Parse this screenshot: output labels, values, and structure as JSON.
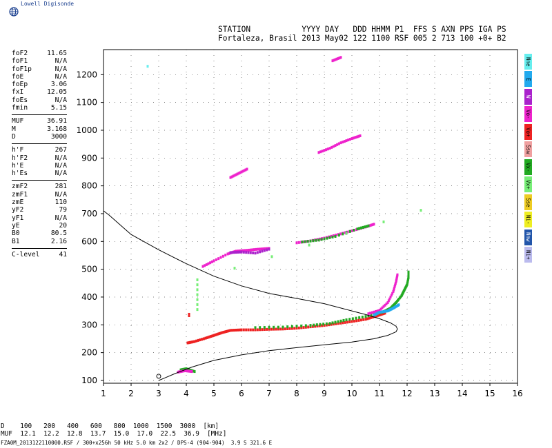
{
  "branding": {
    "logo_text": "Lowell Digisonde"
  },
  "header": {
    "line1": "STATION           YYYY DAY   DDD HHMM P1  FFS S AXN PPS IGA PS",
    "line2": "Fortaleza, Brasil 2013 May02 122 1100 RSF 005 2 713 100 +0+ B2"
  },
  "params_groups": [
    [
      {
        "k": "foF2",
        "v": "11.65"
      },
      {
        "k": "foF1",
        "v": "N/A"
      },
      {
        "k": "foF1p",
        "v": "N/A"
      },
      {
        "k": "foE",
        "v": "N/A"
      },
      {
        "k": "foEp",
        "v": "3.06"
      },
      {
        "k": "fxI",
        "v": "12.05"
      },
      {
        "k": "foEs",
        "v": "N/A"
      },
      {
        "k": "fmin",
        "v": "5.15"
      }
    ],
    [
      {
        "k": "MUF",
        "v": "36.91"
      },
      {
        "k": "M",
        "v": "3.168"
      },
      {
        "k": "D",
        "v": "3000"
      }
    ],
    [
      {
        "k": "h'F",
        "v": "267"
      },
      {
        "k": "h'F2",
        "v": "N/A"
      },
      {
        "k": "h'E",
        "v": "N/A"
      },
      {
        "k": "h'Es",
        "v": "N/A"
      }
    ],
    [
      {
        "k": "zmF2",
        "v": "281"
      },
      {
        "k": "zmF1",
        "v": "N/A"
      },
      {
        "k": "zmE",
        "v": "110"
      },
      {
        "k": "yF2",
        "v": "79"
      },
      {
        "k": "yF1",
        "v": "N/A"
      },
      {
        "k": "yE",
        "v": "20"
      },
      {
        "k": "B0",
        "v": "80.5"
      },
      {
        "k": "B1",
        "v": "2.16"
      }
    ],
    [
      {
        "k": "C-level",
        "v": "41"
      }
    ]
  ],
  "legend": [
    {
      "label": "Nne",
      "color": "#66eeee"
    },
    {
      "label": "E",
      "color": "#22aaee"
    },
    {
      "label": "W",
      "color": "#aa22cc"
    },
    {
      "label": "Vo-",
      "color": "#ee22cc"
    },
    {
      "label": "Vo+",
      "color": "#ee2222"
    },
    {
      "label": "Ssw",
      "color": "#f0a0a0"
    },
    {
      "label": "Vx-",
      "color": "#22aa22"
    },
    {
      "label": "Vx+",
      "color": "#77ee77"
    },
    {
      "label": "Sse",
      "color": "#eecc22"
    },
    {
      "label": "Ni-",
      "color": "#eeee22"
    },
    {
      "label": "Nnw",
      "color": "#2255aa"
    },
    {
      "label": "Ni+",
      "color": "#bbbbee"
    }
  ],
  "footer": {
    "line1": "D    100   200   400   600   800  1000  1500  3000  [km]",
    "line2": "MUF  12.1  12.2  12.8  13.7  15.0  17.0  22.5  36.9  [MHz]",
    "line3": "FZA0M_2013122110000.RSF / 300+x256h 50 kHz 5.0 km 2x2 / DPS-4 (904-904)  3.9 S 321.6 E"
  },
  "chart_data": {
    "type": "scatter",
    "title": "",
    "xlabel": "",
    "ylabel": "",
    "xlim": [
      1,
      16
    ],
    "ylim": [
      90,
      1290
    ],
    "x_ticks": [
      "1",
      "2",
      "3",
      "4",
      "5",
      "6",
      "7",
      "8",
      "9",
      "10",
      "11",
      "12",
      "13",
      "14",
      "15",
      "16"
    ],
    "y_ticks": [
      "100",
      "200",
      "300",
      "400",
      "500",
      "600",
      "700",
      "800",
      "900",
      "1000",
      "1100",
      "1200"
    ],
    "grid": "dotted",
    "profile_curve": {
      "name": "",
      "color": "#000000",
      "points": [
        [
          3.0,
          100
        ],
        [
          3.2,
          108
        ],
        [
          3.6,
          125
        ],
        [
          4.2,
          148
        ],
        [
          5.0,
          172
        ],
        [
          6.0,
          192
        ],
        [
          7.0,
          207
        ],
        [
          8.0,
          218
        ],
        [
          9.0,
          228
        ],
        [
          10.0,
          238
        ],
        [
          10.8,
          250
        ],
        [
          11.3,
          262
        ],
        [
          11.6,
          275
        ],
        [
          11.65,
          285
        ],
        [
          11.6,
          295
        ],
        [
          11.4,
          307
        ],
        [
          11.0,
          322
        ],
        [
          10.5,
          337
        ],
        [
          10.0,
          350
        ],
        [
          9.0,
          376
        ],
        [
          8.0,
          395
        ],
        [
          7.0,
          413
        ],
        [
          6.0,
          440
        ],
        [
          5.0,
          475
        ],
        [
          4.0,
          520
        ],
        [
          3.0,
          570
        ],
        [
          2.0,
          625
        ],
        [
          1.6,
          660
        ],
        [
          1.2,
          695
        ],
        [
          1.0,
          710
        ]
      ]
    },
    "echo_traces": [
      {
        "color": "#ee2222",
        "points": [
          [
            4.05,
            235
          ],
          [
            4.3,
            240
          ],
          [
            4.7,
            252
          ],
          [
            5.0,
            262
          ],
          [
            5.3,
            272
          ],
          [
            5.6,
            280
          ],
          [
            6.0,
            282
          ],
          [
            6.5,
            282
          ],
          [
            7.0,
            284
          ],
          [
            7.5,
            285
          ],
          [
            8.0,
            288
          ],
          [
            8.5,
            293
          ],
          [
            9.0,
            298
          ],
          [
            9.5,
            305
          ],
          [
            10.0,
            312
          ],
          [
            10.5,
            320
          ],
          [
            10.9,
            332
          ],
          [
            11.2,
            342
          ]
        ]
      },
      {
        "color": "#22aa22",
        "points": [
          [
            6.5,
            290
          ],
          [
            7.5,
            292
          ],
          [
            8.5,
            298
          ],
          [
            9.2,
            305
          ],
          [
            9.8,
            318
          ],
          [
            10.5,
            330
          ],
          [
            11.1,
            345
          ],
          [
            11.4,
            360
          ],
          [
            11.6,
            380
          ],
          [
            11.8,
            405
          ],
          [
            11.9,
            425
          ],
          [
            12.0,
            445
          ],
          [
            12.05,
            470
          ],
          [
            12.05,
            490
          ]
        ]
      },
      {
        "color": "#ee22cc",
        "points": [
          [
            10.6,
            340
          ],
          [
            11.0,
            352
          ],
          [
            11.3,
            380
          ],
          [
            11.5,
            420
          ],
          [
            11.6,
            455
          ],
          [
            11.65,
            480
          ]
        ]
      },
      {
        "color": "#22aaee",
        "points": [
          [
            10.8,
            335
          ],
          [
            11.0,
            345
          ],
          [
            11.3,
            350
          ],
          [
            11.5,
            360
          ],
          [
            11.7,
            372
          ]
        ]
      },
      {
        "color": "#ee22cc",
        "points": [
          [
            4.6,
            510
          ],
          [
            5.0,
            530
          ],
          [
            5.5,
            555
          ],
          [
            5.8,
            565
          ],
          [
            6.2,
            568
          ],
          [
            6.6,
            572
          ],
          [
            7.0,
            575
          ]
        ]
      },
      {
        "color": "#aa22cc",
        "points": [
          [
            5.6,
            560
          ],
          [
            6.0,
            562
          ],
          [
            6.5,
            558
          ],
          [
            7.0,
            572
          ]
        ]
      },
      {
        "color": "#ee22cc",
        "points": [
          [
            8.0,
            595
          ],
          [
            8.5,
            602
          ],
          [
            9.0,
            612
          ],
          [
            9.5,
            625
          ],
          [
            10.0,
            638
          ],
          [
            10.5,
            652
          ],
          [
            10.8,
            662
          ]
        ]
      },
      {
        "color": "#22aa22",
        "points": [
          [
            8.2,
            598
          ],
          [
            8.8,
            605
          ],
          [
            9.4,
            618
          ],
          [
            10.2,
            645
          ],
          [
            10.6,
            656
          ]
        ]
      },
      {
        "color": "#ee22cc",
        "points": [
          [
            5.6,
            830
          ],
          [
            5.9,
            845
          ],
          [
            6.2,
            860
          ]
        ]
      },
      {
        "color": "#ee22cc",
        "points": [
          [
            8.8,
            920
          ],
          [
            9.2,
            935
          ],
          [
            9.6,
            955
          ],
          [
            10.0,
            970
          ],
          [
            10.3,
            980
          ]
        ]
      },
      {
        "color": "#ee22cc",
        "points": [
          [
            9.3,
            1250
          ],
          [
            9.6,
            1262
          ]
        ]
      },
      {
        "color": "#22aa22",
        "points": [
          [
            3.8,
            138
          ],
          [
            4.0,
            142
          ],
          [
            4.3,
            132
          ]
        ]
      },
      {
        "color": "#ee22cc",
        "points": [
          [
            3.7,
            130
          ],
          [
            3.95,
            135
          ],
          [
            4.2,
            132
          ]
        ]
      },
      {
        "color": "#ee2222",
        "points": [
          [
            4.1,
            333
          ],
          [
            4.1,
            338
          ]
        ]
      },
      {
        "color": "#77ee77",
        "points": [
          [
            4.4,
            355
          ],
          [
            4.4,
            462
          ],
          [
            12.5,
            712
          ]
        ]
      },
      {
        "color": "#66eeee",
        "points": [
          [
            2.6,
            1230
          ]
        ]
      }
    ]
  }
}
